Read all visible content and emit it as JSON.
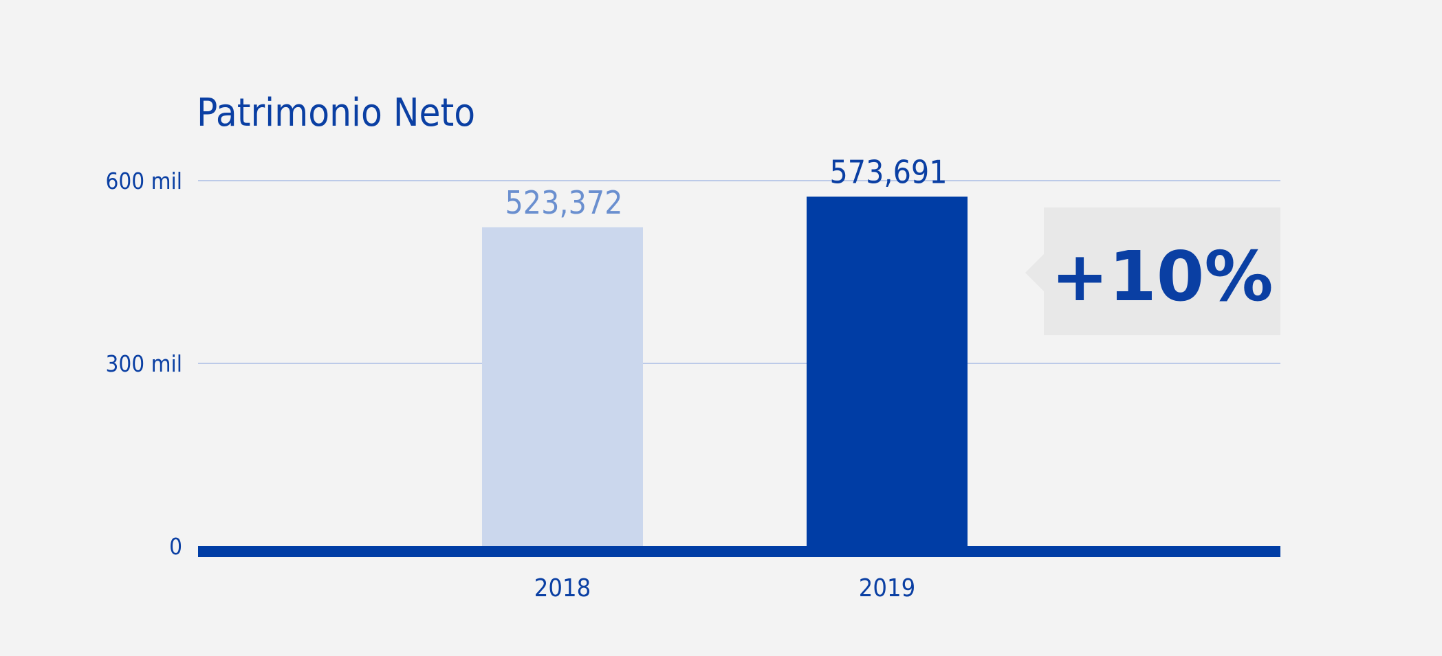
{
  "chart_data": {
    "type": "bar",
    "title": "Patrimonio Neto",
    "categories": [
      "2018",
      "2019"
    ],
    "values": [
      523372,
      573691
    ],
    "value_labels": [
      "523,372",
      "573,691"
    ],
    "ylim": [
      0,
      600000
    ],
    "yticks": [
      {
        "value": 0,
        "label": "0"
      },
      {
        "value": 300000,
        "label": "300 mil"
      },
      {
        "value": 600000,
        "label": "600 mil"
      }
    ],
    "grid": true,
    "annotation": "+10%",
    "colors": {
      "bar_2018": "#cbd7ed",
      "bar_2019": "#003da5",
      "label_2018": "#6a8fcf",
      "label_2019": "#0a3fa3",
      "axis": "#003da5",
      "grid": "#a9bde4",
      "badge_bg": "#e8e8e8"
    }
  }
}
